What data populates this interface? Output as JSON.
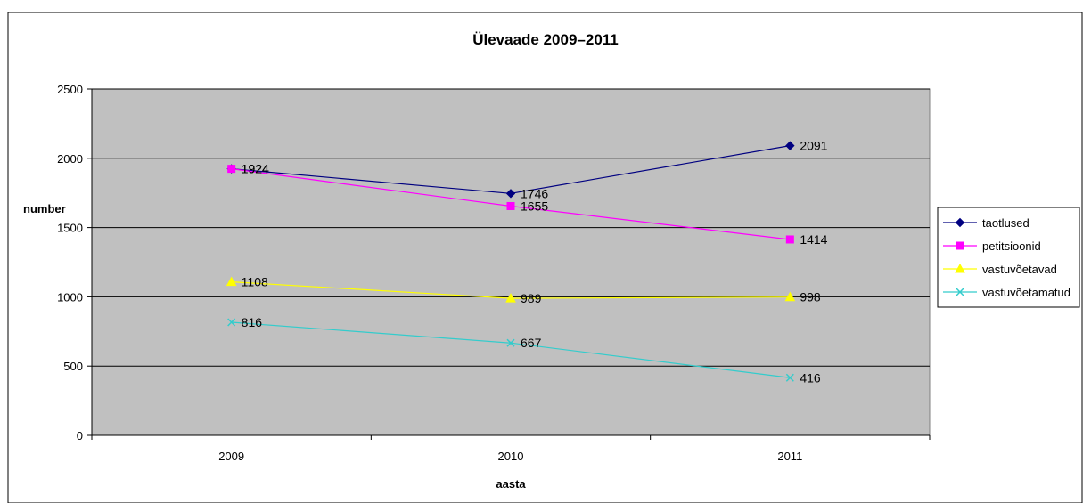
{
  "chart_data": {
    "type": "line",
    "title": "Ülevaade 2009–2011",
    "xlabel": "aasta",
    "ylabel": "number",
    "categories": [
      "2009",
      "2010",
      "2011"
    ],
    "ylim": [
      0,
      2500
    ],
    "yticks": [
      0,
      500,
      1000,
      1500,
      2000,
      2500
    ],
    "grid": true,
    "legend_position": "right",
    "plot_background": "#c0c0c0",
    "series": [
      {
        "name": "taotlused",
        "values": [
          1924,
          1746,
          2091
        ],
        "color": "#000080",
        "marker": "diamond"
      },
      {
        "name": "petitsioonid",
        "values": [
          1924,
          1655,
          1414
        ],
        "color": "#ff00ff",
        "marker": "square"
      },
      {
        "name": "vastuvõetavad",
        "values": [
          1108,
          989,
          998
        ],
        "color": "#ffff00",
        "marker": "triangle"
      },
      {
        "name": "vastuvõetamatud",
        "values": [
          816,
          667,
          416
        ],
        "color": "#33cccc",
        "marker": "x"
      }
    ]
  }
}
